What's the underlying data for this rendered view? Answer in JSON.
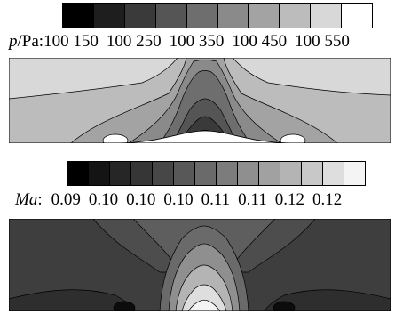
{
  "pressure_panel": {
    "var_symbol": "p",
    "unit_text": "/Pa:",
    "tick_labels": [
      "100 150",
      "100 250",
      "100 350",
      "100 450",
      "100 550"
    ],
    "legend_colors": [
      "#000000",
      "#1e1e1e",
      "#3a3a3a",
      "#555555",
      "#6e6e6e",
      "#8a8a8a",
      "#a3a3a3",
      "#bcbcbc",
      "#d8d8d8",
      "#ffffff"
    ]
  },
  "mach_panel": {
    "var_symbol": "Ma",
    "unit_text": ":",
    "tick_labels": [
      "0.09",
      "0.10",
      "0.10",
      "0.10",
      "0.11",
      "0.11",
      "0.12",
      "0.12"
    ],
    "legend_colors": [
      "#000000",
      "#141414",
      "#262626",
      "#363636",
      "#474747",
      "#585858",
      "#6a6a6a",
      "#7c7c7c",
      "#8f8f8f",
      "#a1a1a1",
      "#b4b4b4",
      "#c8c8c8",
      "#dedede",
      "#f4f4f4"
    ]
  }
}
